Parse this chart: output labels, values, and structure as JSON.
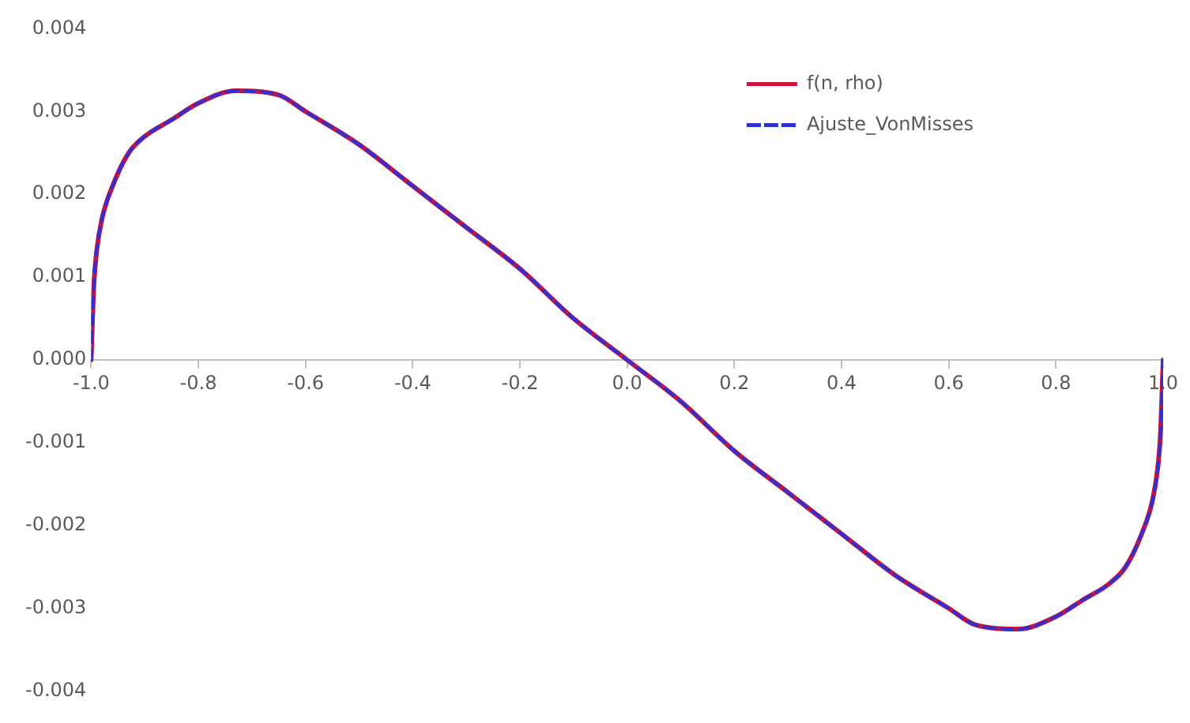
{
  "chart_data": {
    "type": "line",
    "legend": "top right",
    "grid": false,
    "marker": "none",
    "xlim": [
      -1.0,
      1.0
    ],
    "xticks": [
      {
        "value": -1.0,
        "label": "-1.0"
      },
      {
        "value": -0.8,
        "label": "-0.8"
      },
      {
        "value": -0.6,
        "label": "-0.6"
      },
      {
        "value": -0.4,
        "label": "-0.4"
      },
      {
        "value": -0.2,
        "label": "-0.2"
      },
      {
        "value": 0,
        "label": "0.0"
      },
      {
        "value": 0.2,
        "label": "0.2"
      },
      {
        "value": 0.4,
        "label": "0.4"
      },
      {
        "value": 0.6,
        "label": "0.6"
      },
      {
        "value": 0.8,
        "label": "0.8"
      },
      {
        "value": 1.0,
        "label": "1.0"
      }
    ],
    "ylim": [
      -0.004,
      0.004
    ],
    "yticks": [
      {
        "value": -0.004,
        "label": "-0.004"
      },
      {
        "value": -0.003,
        "label": "-0.003"
      },
      {
        "value": -0.002,
        "label": "-0.002"
      },
      {
        "value": -0.001,
        "label": "-0.001"
      },
      {
        "value": 0,
        "label": "0.000"
      },
      {
        "value": 0.001,
        "label": "0.001"
      },
      {
        "value": 0.002,
        "label": "0.002"
      },
      {
        "value": 0.003,
        "label": "0.003"
      },
      {
        "value": 0.004,
        "label": "0.004"
      }
    ],
    "x": [
      -1.0,
      -0.995,
      -0.99,
      -0.98,
      -0.96,
      -0.93,
      -0.9,
      -0.85,
      -0.8,
      -0.73,
      -0.65,
      -0.6,
      -0.5,
      -0.4,
      -0.3,
      -0.2,
      -0.1,
      0,
      0.1,
      0.2,
      0.3,
      0.4,
      0.5,
      0.6,
      0.65,
      0.73,
      0.8,
      0.85,
      0.9,
      0.93,
      0.96,
      0.98,
      0.99,
      0.995,
      1.0
    ],
    "series": [
      {
        "name": "f(n, rho)",
        "color": "#c8143c",
        "line_style": "solid",
        "values": [
          0,
          0.0009,
          0.0013,
          0.0017,
          0.0021,
          0.0025,
          0.0027,
          0.0029,
          0.0031,
          0.00325,
          0.0032,
          0.003,
          0.0026,
          0.0021,
          0.0016,
          0.0011,
          0.0005,
          0,
          -0.0005,
          -0.0011,
          -0.0016,
          -0.0021,
          -0.0026,
          -0.003,
          -0.0032,
          -0.00325,
          -0.0031,
          -0.0029,
          -0.0027,
          -0.0025,
          -0.0021,
          -0.0017,
          -0.0013,
          -0.0009,
          0
        ]
      },
      {
        "name": "Ajuste_VonMisses",
        "color": "#3030d0",
        "line_style": "dashed",
        "values": [
          0,
          0.0009,
          0.0013,
          0.0017,
          0.0021,
          0.0025,
          0.0027,
          0.0029,
          0.0031,
          0.00325,
          0.0032,
          0.003,
          0.0026,
          0.0021,
          0.0016,
          0.0011,
          0.0005,
          0,
          -0.0005,
          -0.0011,
          -0.0016,
          -0.0021,
          -0.0026,
          -0.003,
          -0.0032,
          -0.00325,
          -0.0031,
          -0.0029,
          -0.0027,
          -0.0025,
          -0.0021,
          -0.0017,
          -0.0013,
          -0.0009,
          0
        ]
      }
    ]
  }
}
